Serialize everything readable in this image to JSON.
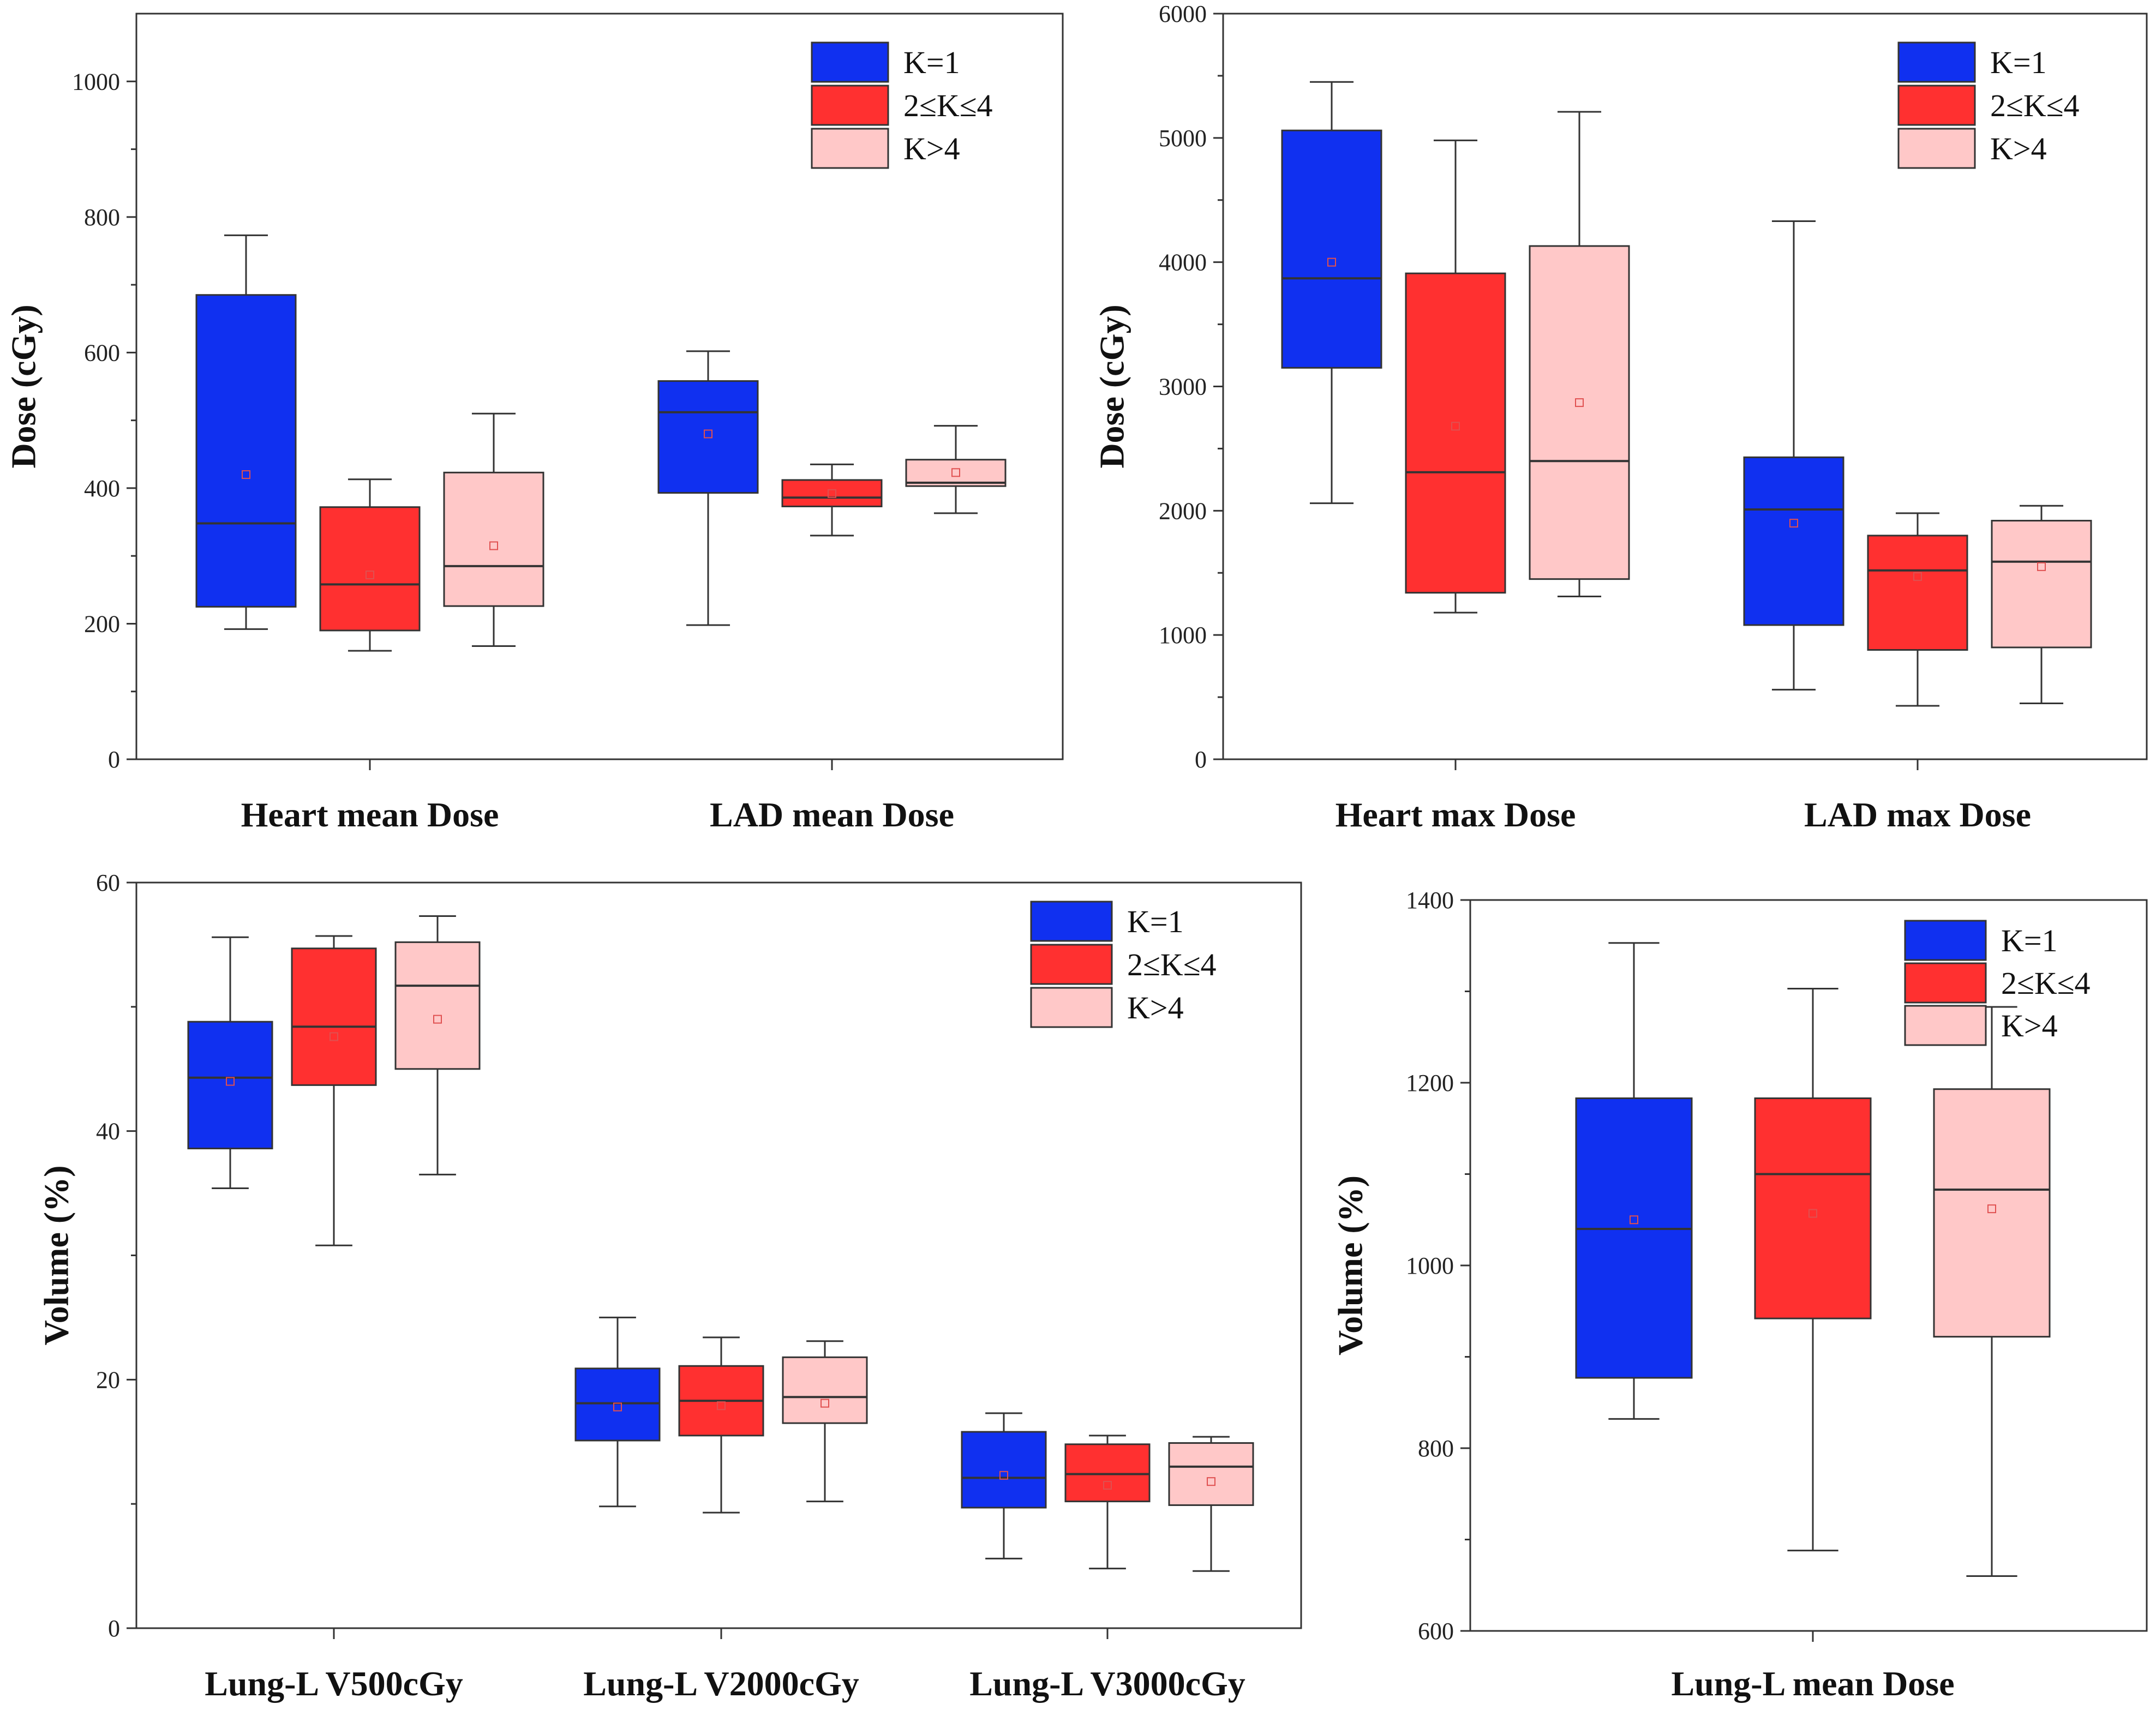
{
  "colors": {
    "k1": "#1030f0",
    "k2_4": "#ff3030",
    "k_gt4": "#ffc8c8",
    "line": "#333333",
    "mean_marker": "#e05050"
  },
  "legend": [
    "K=1",
    "2≤K≤4",
    "K>4"
  ],
  "chart_data": [
    {
      "type": "box",
      "ylabel": "Dose (cGy)",
      "ylim": [
        0,
        1100
      ],
      "yticks": [
        0,
        200,
        400,
        600,
        800,
        1000
      ],
      "legend_position": "top-right",
      "categories": [
        "Heart mean Dose",
        "LAD mean Dose"
      ],
      "series": [
        {
          "name": "K=1",
          "boxes": [
            {
              "min": 192,
              "q1": 225,
              "median": 348,
              "q3": 685,
              "max": 773,
              "mean": 420
            },
            {
              "min": 198,
              "q1": 393,
              "median": 512,
              "q3": 558,
              "max": 602,
              "mean": 480
            }
          ]
        },
        {
          "name": "2≤K≤4",
          "boxes": [
            {
              "min": 160,
              "q1": 190,
              "median": 258,
              "q3": 372,
              "max": 413,
              "mean": 272
            },
            {
              "min": 330,
              "q1": 373,
              "median": 386,
              "q3": 412,
              "max": 435,
              "mean": 392
            }
          ]
        },
        {
          "name": "K>4",
          "boxes": [
            {
              "min": 167,
              "q1": 226,
              "median": 285,
              "q3": 423,
              "max": 510,
              "mean": 315
            },
            {
              "min": 363,
              "q1": 403,
              "median": 408,
              "q3": 442,
              "max": 492,
              "mean": 423
            }
          ]
        }
      ]
    },
    {
      "type": "box",
      "ylabel": "Dose (cGy)",
      "ylim": [
        0,
        6000
      ],
      "yticks": [
        0,
        1000,
        2000,
        3000,
        4000,
        5000,
        6000
      ],
      "legend_position": "top-right",
      "categories": [
        "Heart max Dose",
        "LAD max Dose"
      ],
      "series": [
        {
          "name": "K=1",
          "boxes": [
            {
              "min": 2060,
              "q1": 3150,
              "median": 3870,
              "q3": 5060,
              "max": 5450,
              "mean": 4000
            },
            {
              "min": 560,
              "q1": 1080,
              "median": 2010,
              "q3": 2430,
              "max": 4330,
              "mean": 1900
            }
          ]
        },
        {
          "name": "2≤K≤4",
          "boxes": [
            {
              "min": 1180,
              "q1": 1340,
              "median": 2310,
              "q3": 3910,
              "max": 4980,
              "mean": 2680
            },
            {
              "min": 430,
              "q1": 880,
              "median": 1520,
              "q3": 1800,
              "max": 1980,
              "mean": 1470
            }
          ]
        },
        {
          "name": "K>4",
          "boxes": [
            {
              "min": 1310,
              "q1": 1450,
              "median": 2400,
              "q3": 4130,
              "max": 5210,
              "mean": 2870
            },
            {
              "min": 450,
              "q1": 900,
              "median": 1590,
              "q3": 1920,
              "max": 2040,
              "mean": 1550
            }
          ]
        }
      ]
    },
    {
      "type": "box",
      "ylabel": "Volume (%)",
      "ylim": [
        0,
        60
      ],
      "yticks": [
        0,
        20,
        40,
        60
      ],
      "legend_position": "top-right",
      "categories": [
        "Lung-L V500cGy",
        "Lung-L V2000cGy",
        "Lung-L V3000cGy"
      ],
      "series": [
        {
          "name": "K=1",
          "boxes": [
            {
              "min": 35.4,
              "q1": 38.6,
              "median": 44.3,
              "q3": 48.8,
              "max": 55.6,
              "mean": 44.0
            },
            {
              "min": 9.8,
              "q1": 15.1,
              "median": 18.1,
              "q3": 20.9,
              "max": 25.0,
              "mean": 17.8
            },
            {
              "min": 5.6,
              "q1": 9.7,
              "median": 12.1,
              "q3": 15.8,
              "max": 17.3,
              "mean": 12.3
            }
          ]
        },
        {
          "name": "2≤K≤4",
          "boxes": [
            {
              "min": 30.8,
              "q1": 43.7,
              "median": 48.4,
              "q3": 54.7,
              "max": 55.7,
              "mean": 47.6
            },
            {
              "min": 9.3,
              "q1": 15.5,
              "median": 18.3,
              "q3": 21.1,
              "max": 23.4,
              "mean": 17.9
            },
            {
              "min": 4.8,
              "q1": 10.2,
              "median": 12.4,
              "q3": 14.8,
              "max": 15.5,
              "mean": 11.5
            }
          ]
        },
        {
          "name": "K>4",
          "boxes": [
            {
              "min": 36.5,
              "q1": 45.0,
              "median": 51.7,
              "q3": 55.2,
              "max": 57.3,
              "mean": 49.0
            },
            {
              "min": 10.2,
              "q1": 16.5,
              "median": 18.6,
              "q3": 21.8,
              "max": 23.1,
              "mean": 18.1
            },
            {
              "min": 4.6,
              "q1": 9.9,
              "median": 13.0,
              "q3": 14.9,
              "max": 15.4,
              "mean": 11.8
            }
          ]
        }
      ]
    },
    {
      "type": "box",
      "ylabel": "Volume (%)",
      "ylim": [
        600,
        1400
      ],
      "yticks": [
        600,
        800,
        1000,
        1200,
        1400
      ],
      "legend_position": "top-right",
      "categories": [
        "Lung-L mean Dose"
      ],
      "series": [
        {
          "name": "K=1",
          "boxes": [
            {
              "min": 832,
              "q1": 877,
              "median": 1040,
              "q3": 1183,
              "max": 1353,
              "mean": 1050
            }
          ]
        },
        {
          "name": "2≤K≤4",
          "boxes": [
            {
              "min": 688,
              "q1": 942,
              "median": 1100,
              "q3": 1183,
              "max": 1303,
              "mean": 1057
            }
          ]
        },
        {
          "name": "K>4",
          "boxes": [
            {
              "min": 660,
              "q1": 922,
              "median": 1083,
              "q3": 1193,
              "max": 1283,
              "mean": 1062
            }
          ]
        }
      ]
    }
  ]
}
